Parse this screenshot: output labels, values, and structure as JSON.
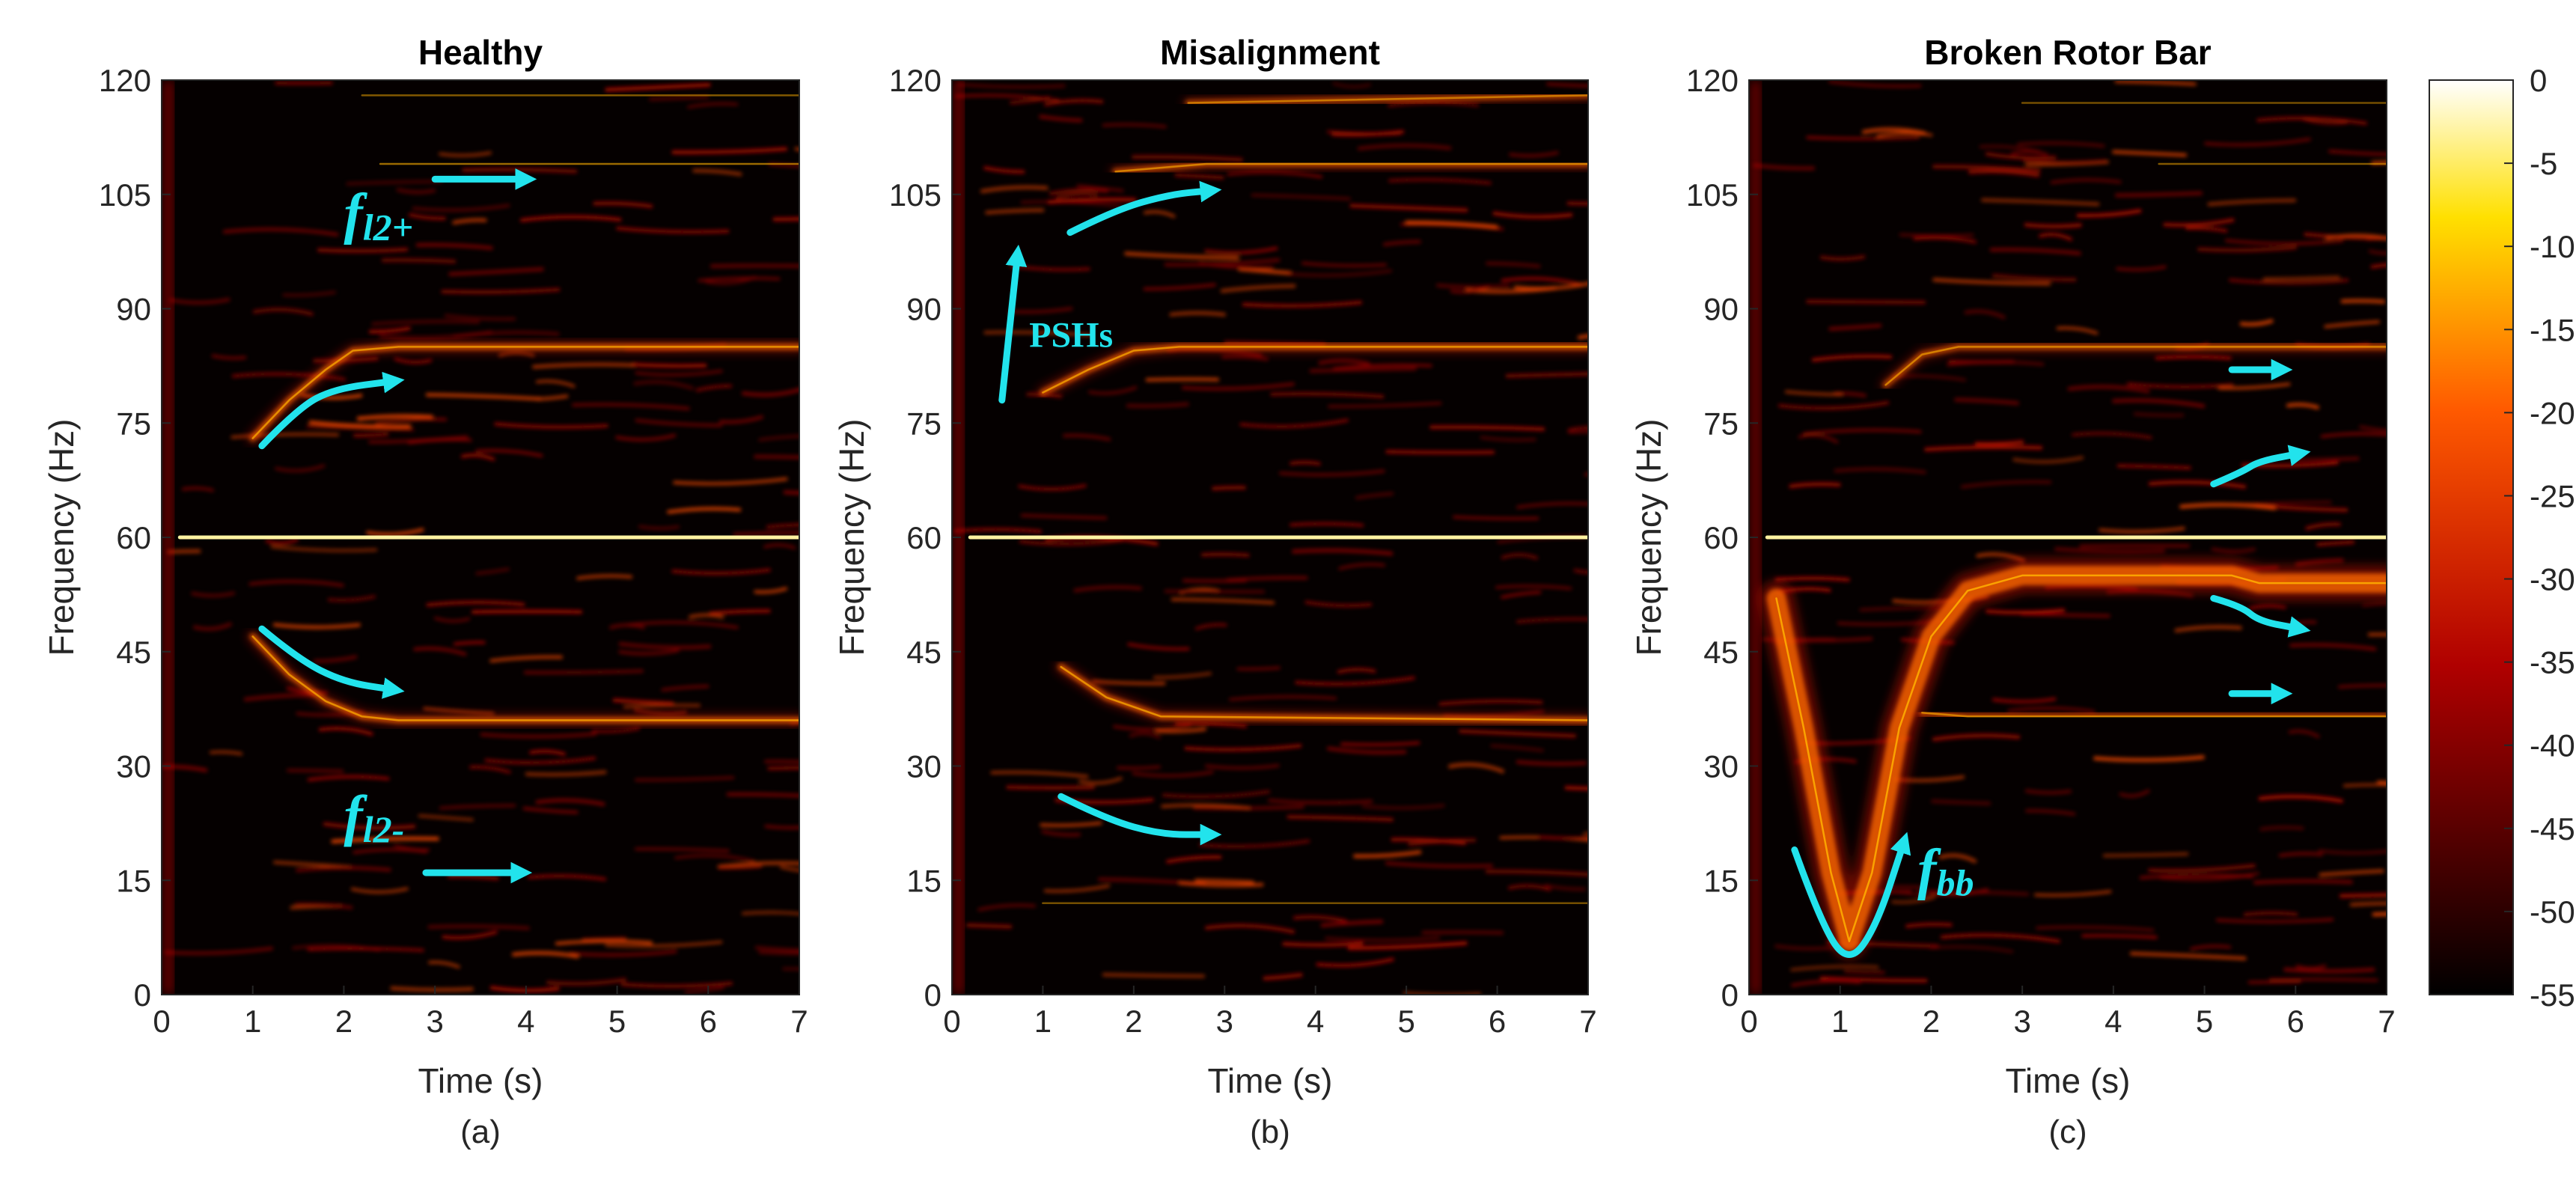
{
  "chart_data": {
    "type": "heatmap",
    "panels": [
      {
        "title": "Healthy",
        "sublabel": "(a)",
        "xlabel": "Time (s)",
        "ylabel": "Frequency (Hz)",
        "xlim": [
          0,
          7
        ],
        "ylim": [
          0,
          120
        ],
        "xticks": [
          0,
          1,
          2,
          3,
          4,
          5,
          6,
          7
        ],
        "yticks": [
          0,
          15,
          30,
          45,
          60,
          75,
          90,
          105,
          120
        ],
        "ridges": [
          {
            "id": "supply",
            "points": [
              [
                0.2,
                60
              ],
              [
                7,
                60
              ]
            ],
            "strength": 1.0
          },
          {
            "id": "upper-sideband",
            "points": [
              [
                1.0,
                73
              ],
              [
                1.4,
                78
              ],
              [
                1.8,
                82
              ],
              [
                2.1,
                84.5
              ],
              [
                2.6,
                85
              ],
              [
                7,
                85
              ]
            ],
            "strength": 0.7
          },
          {
            "id": "lower-sideband",
            "points": [
              [
                1.0,
                47
              ],
              [
                1.4,
                42
              ],
              [
                1.8,
                38.5
              ],
              [
                2.2,
                36.5
              ],
              [
                2.6,
                36
              ],
              [
                7,
                36
              ]
            ],
            "strength": 0.7
          },
          {
            "id": "psh-upper",
            "points": [
              [
                2.4,
                109
              ],
              [
                7,
                109
              ]
            ],
            "strength": 0.6
          },
          {
            "id": "psh-top",
            "points": [
              [
                2.2,
                118
              ],
              [
                7,
                118
              ]
            ],
            "strength": 0.5
          }
        ],
        "annotations": [
          {
            "text": "f",
            "sub": "l2+",
            "x": 2.0,
            "y": 100
          },
          {
            "text": "f",
            "sub": "l2-",
            "x": 2.0,
            "y": 21
          }
        ],
        "arrows": [
          {
            "points": [
              [
                3.0,
                107
              ],
              [
                4.0,
                107
              ]
            ]
          },
          {
            "points": [
              [
                1.1,
                72
              ],
              [
                1.5,
                77
              ],
              [
                1.9,
                79.5
              ],
              [
                2.55,
                80.5
              ]
            ]
          },
          {
            "points": [
              [
                1.1,
                48
              ],
              [
                1.5,
                44
              ],
              [
                2.0,
                41
              ],
              [
                2.55,
                40
              ]
            ]
          },
          {
            "points": [
              [
                2.9,
                16
              ],
              [
                3.95,
                16
              ]
            ]
          }
        ]
      },
      {
        "title": "Misalignment",
        "sublabel": "(b)",
        "xlabel": "Time (s)",
        "ylabel": "Frequency (Hz)",
        "xlim": [
          0,
          7
        ],
        "ylim": [
          0,
          120
        ],
        "xticks": [
          0,
          1,
          2,
          3,
          4,
          5,
          6,
          7
        ],
        "yticks": [
          0,
          15,
          30,
          45,
          60,
          75,
          90,
          105,
          120
        ],
        "ridges": [
          {
            "id": "supply",
            "points": [
              [
                0.2,
                60
              ],
              [
                7,
                60
              ]
            ],
            "strength": 1.0
          },
          {
            "id": "upper-sideband",
            "points": [
              [
                1.0,
                79
              ],
              [
                1.5,
                82
              ],
              [
                2.0,
                84.5
              ],
              [
                2.5,
                85
              ],
              [
                7,
                85
              ]
            ],
            "strength": 0.7
          },
          {
            "id": "lower-sideband",
            "points": [
              [
                1.2,
                43
              ],
              [
                1.7,
                39
              ],
              [
                2.3,
                36.5
              ],
              [
                7,
                36
              ]
            ],
            "strength": 0.7
          },
          {
            "id": "psh-upper",
            "points": [
              [
                1.8,
                108
              ],
              [
                2.8,
                109
              ],
              [
                7,
                109
              ]
            ],
            "strength": 0.6
          },
          {
            "id": "psh-top",
            "points": [
              [
                2.6,
                117
              ],
              [
                7,
                118
              ]
            ],
            "strength": 0.55
          },
          {
            "id": "low-band",
            "points": [
              [
                1.0,
                12
              ],
              [
                7,
                12
              ]
            ],
            "strength": 0.45
          }
        ],
        "annotations": [
          {
            "text": "PSHs",
            "x": 0.85,
            "y": 85
          }
        ],
        "arrows": [
          {
            "points": [
              [
                0.55,
                78
              ],
              [
                0.72,
                97
              ]
            ]
          },
          {
            "points": [
              [
                1.3,
                100
              ],
              [
                1.8,
                103
              ],
              [
                2.4,
                105
              ],
              [
                2.85,
                105.5
              ]
            ]
          },
          {
            "points": [
              [
                1.2,
                26
              ],
              [
                1.7,
                23
              ],
              [
                2.3,
                21
              ],
              [
                2.85,
                21
              ]
            ]
          }
        ]
      },
      {
        "title": "Broken Rotor Bar",
        "sublabel": "(c)",
        "xlabel": "Time (s)",
        "ylabel": "Frequency (Hz)",
        "xlim": [
          0,
          7
        ],
        "ylim": [
          0,
          120
        ],
        "xticks": [
          0,
          1,
          2,
          3,
          4,
          5,
          6,
          7
        ],
        "yticks": [
          0,
          15,
          30,
          45,
          60,
          75,
          90,
          105,
          120
        ],
        "ridges": [
          {
            "id": "supply",
            "points": [
              [
                0.2,
                60
              ],
              [
                7,
                60
              ]
            ],
            "strength": 1.0
          },
          {
            "id": "bb-sideband",
            "points": [
              [
                0.3,
                52
              ],
              [
                0.6,
                35
              ],
              [
                0.9,
                16
              ],
              [
                1.1,
                7
              ],
              [
                1.35,
                16
              ],
              [
                1.65,
                35
              ],
              [
                2.0,
                47
              ],
              [
                2.4,
                53
              ],
              [
                3.0,
                55
              ],
              [
                5.3,
                55
              ],
              [
                5.6,
                54
              ],
              [
                7,
                54
              ]
            ],
            "strength": 0.85
          },
          {
            "id": "upper-sideband",
            "points": [
              [
                1.5,
                80
              ],
              [
                1.9,
                84
              ],
              [
                2.3,
                85
              ],
              [
                7,
                85
              ]
            ],
            "strength": 0.6
          },
          {
            "id": "lower-sideband",
            "points": [
              [
                1.9,
                37
              ],
              [
                2.4,
                36.5
              ],
              [
                7,
                36.5
              ]
            ],
            "strength": 0.6
          },
          {
            "id": "psh-upper",
            "points": [
              [
                4.5,
                109
              ],
              [
                7,
                109
              ]
            ],
            "strength": 0.5
          },
          {
            "id": "psh-top",
            "points": [
              [
                3.0,
                117
              ],
              [
                7,
                117
              ]
            ],
            "strength": 0.45
          }
        ],
        "annotations": [
          {
            "text": "f",
            "sub": "bb",
            "x": 1.85,
            "y": 14
          }
        ],
        "arrows": [
          {
            "points": [
              [
                0.5,
                19
              ],
              [
                0.8,
                9
              ],
              [
                1.1,
                4
              ],
              [
                1.4,
                9
              ],
              [
                1.7,
                20
              ]
            ]
          },
          {
            "points": [
              [
                5.3,
                82
              ],
              [
                5.85,
                82
              ]
            ]
          },
          {
            "points": [
              [
                5.1,
                67
              ],
              [
                5.4,
                68.5
              ],
              [
                5.6,
                70
              ],
              [
                6.05,
                71
              ]
            ]
          },
          {
            "points": [
              [
                5.1,
                52
              ],
              [
                5.4,
                51
              ],
              [
                5.6,
                49
              ],
              [
                6.05,
                48
              ]
            ]
          },
          {
            "points": [
              [
                5.3,
                39.5
              ],
              [
                5.85,
                39.5
              ]
            ]
          }
        ]
      }
    ],
    "colorbar": {
      "colormap": "hot",
      "range": [
        -55,
        0
      ],
      "ticks": [
        0,
        -5,
        -10,
        -15,
        -20,
        -25,
        -30,
        -35,
        -40,
        -45,
        -50,
        -55
      ]
    }
  }
}
